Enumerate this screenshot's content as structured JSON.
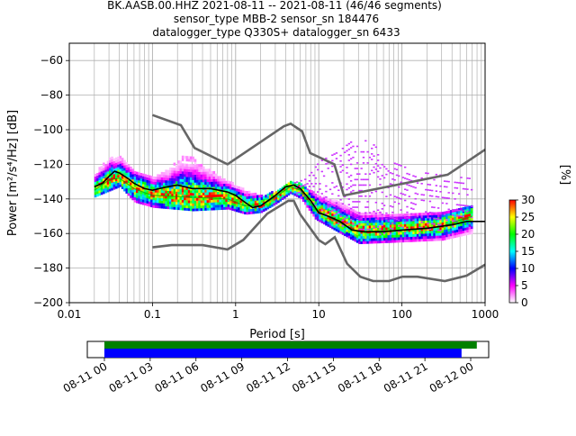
{
  "chart_data": {
    "type": "heatmap",
    "title": {
      "line1": "BK.AASB.00.HHZ   2021-08-11 -- 2021-08-11  (46/46 segments)",
      "line2": "sensor_type MBB-2 sensor_sn 184476",
      "line3": "datalogger_type Q330S+ datalogger_sn 6433"
    },
    "xlabel": "Period [s]",
    "ylabel_prefix": "Power [",
    "ylabel_units": "m²/s⁴/Hz",
    "ylabel_suffix": "] [dB]",
    "x_scale": "log",
    "xlim": [
      0.01,
      1000
    ],
    "ylim": [
      -200,
      -50
    ],
    "x_ticks": [
      {
        "v": 0.01,
        "label": "0.01"
      },
      {
        "v": 0.1,
        "label": "0.1"
      },
      {
        "v": 1,
        "label": "1"
      },
      {
        "v": 10,
        "label": "10"
      },
      {
        "v": 100,
        "label": "100"
      },
      {
        "v": 1000,
        "label": "1000"
      }
    ],
    "y_ticks": [
      {
        "v": -60,
        "label": "−60"
      },
      {
        "v": -80,
        "label": "−80"
      },
      {
        "v": -100,
        "label": "−100"
      },
      {
        "v": -120,
        "label": "−120"
      },
      {
        "v": -140,
        "label": "−140"
      },
      {
        "v": -160,
        "label": "−160"
      },
      {
        "v": -180,
        "label": "−180"
      },
      {
        "v": -200,
        "label": "−200"
      }
    ],
    "grid": true,
    "colorbar": {
      "label": "[%]",
      "min": 0,
      "max": 30,
      "ticks": [
        {
          "v": 0,
          "label": "0"
        },
        {
          "v": 5,
          "label": "5"
        },
        {
          "v": 10,
          "label": "10"
        },
        {
          "v": 15,
          "label": "15"
        },
        {
          "v": 20,
          "label": "20"
        },
        {
          "v": 25,
          "label": "25"
        },
        {
          "v": 30,
          "label": "30"
        }
      ],
      "colormap": [
        "#ffffff",
        "#ff00ff",
        "#0000ff",
        "#00ffff",
        "#00ff00",
        "#ffff00",
        "#ff0000"
      ]
    },
    "noise_models": {
      "color": "#666666",
      "nhnm": [
        [
          0.1,
          -91.5
        ],
        [
          0.22,
          -97.4
        ],
        [
          0.32,
          -110.5
        ],
        [
          0.8,
          -120
        ],
        [
          3.8,
          -98
        ],
        [
          4.6,
          -96.5
        ],
        [
          6.3,
          -101
        ],
        [
          7.9,
          -113.5
        ],
        [
          15.4,
          -120
        ],
        [
          20,
          -138
        ],
        [
          354.8,
          -126
        ],
        [
          1000,
          -111.5
        ]
      ],
      "nlnm": [
        [
          0.1,
          -168
        ],
        [
          0.17,
          -166.7
        ],
        [
          0.4,
          -166.7
        ],
        [
          0.8,
          -169.2
        ],
        [
          1.24,
          -163.7
        ],
        [
          2.4,
          -148.6
        ],
        [
          4.3,
          -141.1
        ],
        [
          5,
          -141.1
        ],
        [
          6,
          -149
        ],
        [
          10,
          -163.8
        ],
        [
          12,
          -166.2
        ],
        [
          15.6,
          -162.1
        ],
        [
          21.9,
          -177.5
        ],
        [
          31.6,
          -185
        ],
        [
          45,
          -187.5
        ],
        [
          70,
          -187.5
        ],
        [
          101,
          -185
        ],
        [
          154,
          -185
        ],
        [
          328,
          -187.5
        ],
        [
          600,
          -184.4
        ],
        [
          1000,
          -178
        ]
      ]
    },
    "mean_curve": {
      "color": "#000000",
      "points": [
        [
          0.02,
          -133
        ],
        [
          0.025,
          -131
        ],
        [
          0.03,
          -127
        ],
        [
          0.035,
          -124
        ],
        [
          0.04,
          -125
        ],
        [
          0.05,
          -128
        ],
        [
          0.06,
          -131
        ],
        [
          0.08,
          -134
        ],
        [
          0.1,
          -135
        ],
        [
          0.15,
          -133
        ],
        [
          0.2,
          -132
        ],
        [
          0.3,
          -134
        ],
        [
          0.5,
          -134
        ],
        [
          0.8,
          -136
        ],
        [
          1.0,
          -138
        ],
        [
          1.3,
          -142
        ],
        [
          1.6,
          -145
        ],
        [
          2.0,
          -144
        ],
        [
          3.0,
          -138
        ],
        [
          4.0,
          -133
        ],
        [
          5.0,
          -132
        ],
        [
          6.0,
          -134
        ],
        [
          8.0,
          -141
        ],
        [
          10,
          -148
        ],
        [
          13,
          -150
        ],
        [
          18,
          -153
        ],
        [
          25,
          -158
        ],
        [
          35,
          -159
        ],
        [
          60,
          -159
        ],
        [
          100,
          -158
        ],
        [
          200,
          -157
        ],
        [
          400,
          -155
        ],
        [
          600,
          -153
        ],
        [
          1000,
          -153
        ]
      ]
    },
    "mode_curve": {
      "color": "#00aa00",
      "points": [
        [
          0.02,
          -135
        ],
        [
          0.03,
          -129
        ],
        [
          0.04,
          -128
        ],
        [
          0.06,
          -134
        ],
        [
          0.1,
          -138
        ],
        [
          0.3,
          -139
        ],
        [
          0.8,
          -140
        ],
        [
          1.3,
          -144
        ],
        [
          2.0,
          -144
        ],
        [
          3.0,
          -139
        ],
        [
          4.5,
          -133
        ],
        [
          6.0,
          -135
        ],
        [
          9.0,
          -146
        ],
        [
          15,
          -152
        ],
        [
          30,
          -159
        ],
        [
          100,
          -158
        ],
        [
          300,
          -156
        ],
        [
          700,
          -150
        ]
      ]
    },
    "psd_band": {
      "lower": [
        [
          0.02,
          -139
        ],
        [
          0.04,
          -133
        ],
        [
          0.06,
          -142
        ],
        [
          0.1,
          -145
        ],
        [
          0.3,
          -147
        ],
        [
          0.8,
          -146
        ],
        [
          1.3,
          -149
        ],
        [
          2.0,
          -148
        ],
        [
          3.0,
          -143
        ],
        [
          4.5,
          -137
        ],
        [
          6.0,
          -140
        ],
        [
          9.0,
          -152
        ],
        [
          15,
          -158
        ],
        [
          30,
          -166
        ],
        [
          100,
          -165
        ],
        [
          300,
          -164
        ],
        [
          700,
          -160
        ]
      ],
      "upper": [
        [
          0.02,
          -125
        ],
        [
          0.03,
          -117
        ],
        [
          0.04,
          -116
        ],
        [
          0.06,
          -124
        ],
        [
          0.1,
          -128
        ],
        [
          0.15,
          -124
        ],
        [
          0.22,
          -116
        ],
        [
          0.3,
          -117
        ],
        [
          0.5,
          -124
        ],
        [
          0.8,
          -130
        ],
        [
          1.3,
          -136
        ],
        [
          2.0,
          -139
        ],
        [
          3.0,
          -136
        ],
        [
          4.5,
          -131
        ],
        [
          6.0,
          -132
        ],
        [
          9.0,
          -138
        ],
        [
          15,
          -141
        ],
        [
          30,
          -148
        ],
        [
          100,
          -150
        ],
        [
          300,
          -148
        ],
        [
          700,
          -144
        ]
      ]
    },
    "scatter_region": {
      "lower": [
        [
          4.5,
          -134
        ],
        [
          7,
          -140
        ],
        [
          10,
          -148
        ],
        [
          20,
          -156
        ],
        [
          40,
          -161
        ],
        [
          100,
          -160
        ],
        [
          300,
          -159
        ],
        [
          700,
          -150
        ]
      ],
      "upper": [
        [
          4.5,
          -131
        ],
        [
          7,
          -128
        ],
        [
          10,
          -118
        ],
        [
          16,
          -113
        ],
        [
          25,
          -106
        ],
        [
          40,
          -106
        ],
        [
          70,
          -118
        ],
        [
          150,
          -124
        ],
        [
          300,
          -126
        ],
        [
          700,
          -128
        ]
      ]
    }
  },
  "timeline": {
    "start": "2021-08-11 00:00",
    "end": "2021-08-12 01:00",
    "ticks": [
      "08-11 00",
      "08-11 03",
      "08-11 06",
      "08-11 09",
      "08-11 12",
      "08-11 15",
      "08-11 18",
      "08-11 21",
      "08-12 00"
    ],
    "data_bar": {
      "color": "#008000",
      "start_hour": 0,
      "end_hour": 24.4
    },
    "psd_bar": {
      "color": "#0000ff",
      "start_hour": 0,
      "end_hour": 23.4
    }
  }
}
